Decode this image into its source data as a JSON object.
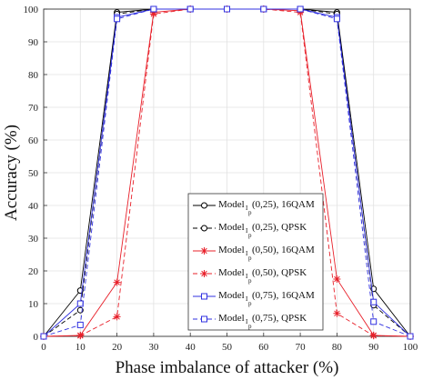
{
  "chart_data": {
    "type": "line",
    "title": "",
    "xlabel": "Phase imbalance of attacker (%)",
    "ylabel": "Accuracy (%)",
    "x": [
      0,
      10,
      20,
      30,
      40,
      50,
      60,
      70,
      80,
      90,
      100
    ],
    "xlim": [
      0,
      100
    ],
    "ylim": [
      0,
      100
    ],
    "xticks": [
      "0",
      "10",
      "20",
      "30",
      "40",
      "50",
      "60",
      "70",
      "80",
      "90",
      "100"
    ],
    "yticks": [
      "0",
      "10",
      "20",
      "30",
      "40",
      "50",
      "60",
      "70",
      "80",
      "90",
      "100"
    ],
    "grid": true,
    "legend_position": "bottom-right",
    "series": [
      {
        "name": "Model_Ip (0,25), 16QAM",
        "name_main": "Model",
        "name_sub": "I",
        "name_subsub": "p",
        "name_rest": " (0,25), 16QAM",
        "color": "#000000",
        "dash": "solid",
        "marker": "circle",
        "values": [
          0,
          14,
          99,
          100,
          100,
          100,
          100,
          100,
          99,
          14.5,
          0
        ]
      },
      {
        "name": "Model_Ip (0,25), QPSK",
        "name_main": "Model",
        "name_sub": "I",
        "name_subsub": "p",
        "name_rest": " (0,25), QPSK",
        "color": "#000000",
        "dash": "dashed",
        "marker": "circle",
        "values": [
          0,
          8,
          98.5,
          100,
          100,
          100,
          100,
          100,
          98.5,
          9.5,
          0
        ]
      },
      {
        "name": "Model_Ip (0,50), 16QAM",
        "name_main": "Model",
        "name_sub": "I",
        "name_subsub": "p",
        "name_rest": " (0,50), 16QAM",
        "color": "#e8202a",
        "dash": "solid",
        "marker": "star",
        "values": [
          0,
          0.3,
          16.5,
          99,
          100,
          100,
          100,
          99.5,
          17.5,
          0.3,
          0
        ]
      },
      {
        "name": "Model_Ip (0,50), QPSK",
        "name_main": "Model",
        "name_sub": "I",
        "name_subsub": "p",
        "name_rest": " (0,50), QPSK",
        "color": "#e8202a",
        "dash": "dashed",
        "marker": "star",
        "values": [
          0,
          0.2,
          6,
          98.5,
          100,
          100,
          100,
          99,
          7,
          0.2,
          0
        ]
      },
      {
        "name": "Model_Ip (0,75), 16QAM",
        "name_main": "Model",
        "name_sub": "I",
        "name_subsub": "p",
        "name_rest": " (0,75), 16QAM",
        "color": "#3030e0",
        "dash": "solid",
        "marker": "square",
        "values": [
          0,
          10,
          97.5,
          100,
          100,
          100,
          100,
          100,
          97.5,
          10.5,
          0
        ]
      },
      {
        "name": "Model_Ip (0,75), QPSK",
        "name_main": "Model",
        "name_sub": "I",
        "name_subsub": "p",
        "name_rest": " (0,75), QPSK",
        "color": "#3030e0",
        "dash": "dashed",
        "marker": "square",
        "values": [
          0,
          3.5,
          97,
          100,
          100,
          100,
          100,
          100,
          97,
          4.5,
          0
        ]
      }
    ]
  }
}
